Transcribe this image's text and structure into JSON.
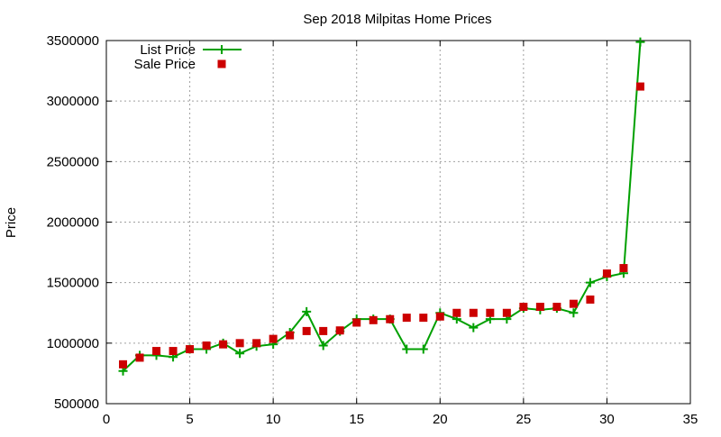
{
  "chart_data": {
    "type": "line",
    "title": "Sep 2018 Milpitas Home Prices",
    "xlabel": "",
    "ylabel": "Price",
    "xlim": [
      0,
      35
    ],
    "ylim": [
      500000,
      3500000
    ],
    "xticks": [
      0,
      5,
      10,
      15,
      20,
      25,
      30,
      35
    ],
    "yticks": [
      500000,
      1000000,
      1500000,
      2000000,
      2500000,
      3000000,
      3500000
    ],
    "grid": true,
    "legend_position": "top-left",
    "x": [
      1,
      2,
      3,
      4,
      5,
      6,
      7,
      8,
      9,
      10,
      11,
      12,
      13,
      14,
      15,
      16,
      17,
      18,
      19,
      20,
      21,
      22,
      23,
      24,
      25,
      26,
      27,
      28,
      29,
      30,
      31,
      32
    ],
    "series": [
      {
        "name": "List Price",
        "style": "linespoints",
        "color": "#00a000",
        "values": [
          770000,
          899000,
          899000,
          885000,
          950000,
          950000,
          1000000,
          915000,
          975000,
          990000,
          1088000,
          1260000,
          980000,
          1098000,
          1199000,
          1199000,
          1199000,
          950000,
          950000,
          1250000,
          1199000,
          1128000,
          1199000,
          1199000,
          1288000,
          1275000,
          1288000,
          1250000,
          1500000,
          1549000,
          1578000,
          3488000
        ]
      },
      {
        "name": "Sale Price",
        "style": "points",
        "color": "#cc0000",
        "values": [
          825000,
          880000,
          935000,
          935000,
          950000,
          980000,
          990000,
          1000000,
          1000000,
          1035000,
          1065000,
          1100000,
          1100000,
          1105000,
          1170000,
          1190000,
          1198000,
          1210000,
          1210000,
          1220000,
          1250000,
          1250000,
          1250000,
          1250000,
          1300000,
          1300000,
          1300000,
          1325000,
          1360000,
          1575000,
          1620000,
          3120000
        ]
      }
    ]
  }
}
